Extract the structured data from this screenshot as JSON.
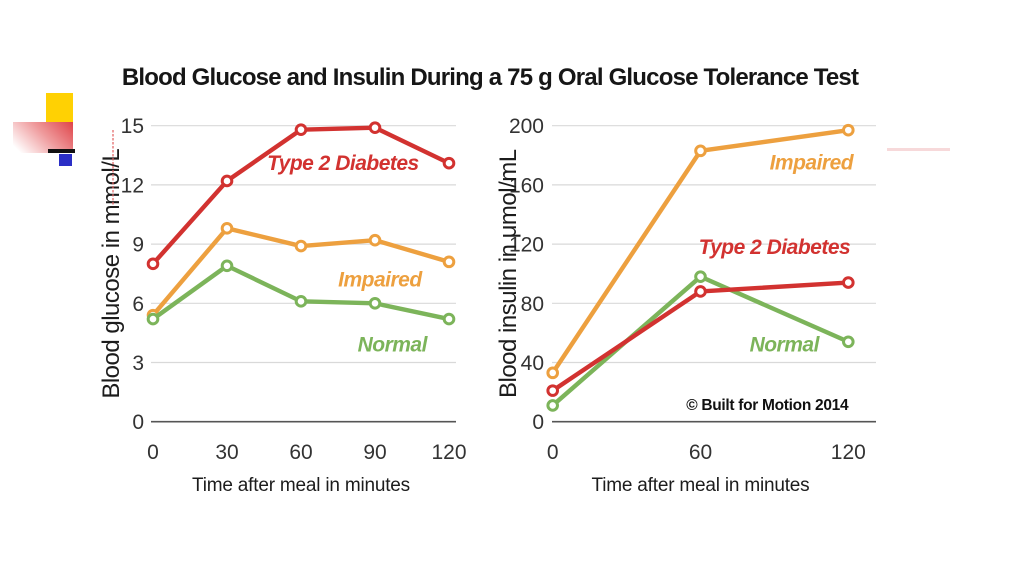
{
  "page": {
    "title": "Blood Glucose and Insulin During a 75 g Oral Glucose Tolerance Test",
    "background": "#ffffff"
  },
  "decoration": {
    "yellow_square": "#ffd103",
    "red_gradient": "#df4449",
    "black_line": "#111111",
    "blue_square": "#2b2fc6",
    "faint_pink_line": "#eeaaac",
    "misspell_underline": "#e26060"
  },
  "colors": {
    "type_2_diabetes": "#d23230",
    "impaired": "#eda03f",
    "normal": "#7cb45a",
    "grid": "#d9d9d9",
    "axis": "#555555",
    "marker_fill": "#ffffff"
  },
  "chart_data": [
    {
      "type": "line",
      "title": "",
      "xlabel": "Time after meal in minutes",
      "ylabel": "Blood glucose in mmol/L",
      "xlim": [
        0,
        120
      ],
      "ylim": [
        0,
        15
      ],
      "x": [
        0,
        30,
        60,
        90,
        120
      ],
      "xticks": [
        0,
        30,
        60,
        90,
        120
      ],
      "yticks": [
        0,
        3,
        6,
        9,
        12,
        15
      ],
      "grid": true,
      "legend_position": "inline-labels",
      "series": [
        {
          "name": "Impaired",
          "color": "#eda03f",
          "values": [
            5.4,
            9.8,
            8.9,
            9.2,
            8.1
          ],
          "label_at": {
            "x": 92,
            "y": 7.2
          }
        },
        {
          "name": "Normal",
          "color": "#7cb45a",
          "values": [
            5.2,
            7.9,
            6.1,
            6.0,
            5.2
          ],
          "label_at": {
            "x": 97,
            "y": 3.9
          }
        },
        {
          "name": "Type 2 Diabetes",
          "color": "#d23230",
          "values": [
            8.0,
            12.2,
            14.8,
            14.9,
            13.1
          ],
          "label_at": {
            "x": 77,
            "y": 13.1
          }
        }
      ]
    },
    {
      "type": "line",
      "title": "",
      "xlabel": "Time after meal in minutes",
      "ylabel": "Blood insulin in μmol/mL",
      "xlim": [
        0,
        120
      ],
      "ylim": [
        0,
        200
      ],
      "x": [
        0,
        60,
        120
      ],
      "xticks": [
        0,
        60,
        120
      ],
      "yticks": [
        0,
        40,
        80,
        120,
        160,
        200
      ],
      "grid": true,
      "legend_position": "inline-labels",
      "annotation": {
        "text": "© Built for Motion 2014",
        "x": 120,
        "y": 8,
        "anchor": "end"
      },
      "series": [
        {
          "name": "Impaired",
          "color": "#eda03f",
          "values": [
            33,
            183,
            197
          ],
          "label_at": {
            "x": 105,
            "y": 175
          }
        },
        {
          "name": "Normal",
          "color": "#7cb45a",
          "values": [
            11,
            98,
            54
          ],
          "label_at": {
            "x": 94,
            "y": 52
          }
        },
        {
          "name": "Type 2 Diabetes",
          "color": "#d23230",
          "values": [
            21,
            88,
            94
          ],
          "label_at": {
            "x": 90,
            "y": 118
          }
        }
      ]
    }
  ]
}
